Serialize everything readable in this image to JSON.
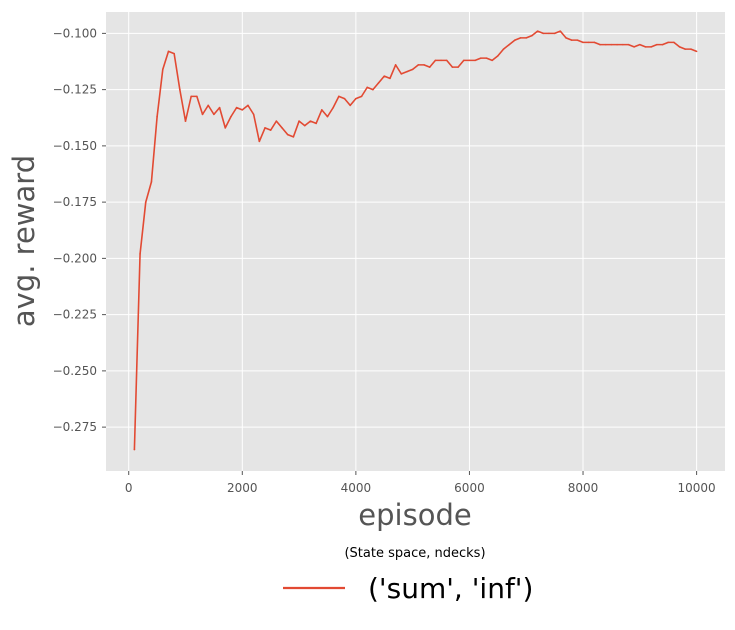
{
  "chart_data": {
    "type": "line",
    "xlabel": "episode",
    "ylabel": "avg. reward",
    "xlim": [
      -400,
      10500
    ],
    "ylim": [
      -0.2945,
      -0.0905
    ],
    "x_ticks": [
      {
        "value": 0,
        "label": "0"
      },
      {
        "value": 2000,
        "label": "2000"
      },
      {
        "value": 4000,
        "label": "4000"
      },
      {
        "value": 6000,
        "label": "6000"
      },
      {
        "value": 8000,
        "label": "8000"
      },
      {
        "value": 10000,
        "label": "10000"
      }
    ],
    "y_ticks": [
      {
        "value": -0.275,
        "label": "−0.275"
      },
      {
        "value": -0.25,
        "label": "−0.250"
      },
      {
        "value": -0.225,
        "label": "−0.225"
      },
      {
        "value": -0.2,
        "label": "−0.200"
      },
      {
        "value": -0.175,
        "label": "−0.175"
      },
      {
        "value": -0.15,
        "label": "−0.150"
      },
      {
        "value": -0.125,
        "label": "−0.125"
      },
      {
        "value": -0.1,
        "label": "−0.100"
      }
    ],
    "grid": true,
    "style": "ggplot",
    "legend": {
      "title": "(State space, ndecks)",
      "placement": "below the plot",
      "entries": [
        {
          "label": "('sum', 'inf')",
          "color": "#E24A33"
        }
      ]
    },
    "series": [
      {
        "name": "('sum', 'inf')",
        "color": "#E24A33",
        "x": [
          100,
          200,
          300,
          400,
          500,
          600,
          700,
          800,
          900,
          1000,
          1100,
          1200,
          1300,
          1400,
          1500,
          1600,
          1700,
          1800,
          1900,
          2000,
          2100,
          2200,
          2300,
          2400,
          2500,
          2600,
          2700,
          2800,
          2900,
          3000,
          3100,
          3200,
          3300,
          3400,
          3500,
          3600,
          3700,
          3800,
          3900,
          4000,
          4100,
          4200,
          4300,
          4400,
          4500,
          4600,
          4700,
          4800,
          4900,
          5000,
          5100,
          5200,
          5300,
          5400,
          5500,
          5600,
          5700,
          5800,
          5900,
          6000,
          6100,
          6200,
          6300,
          6400,
          6500,
          6600,
          6700,
          6800,
          6900,
          7000,
          7100,
          7200,
          7300,
          7400,
          7500,
          7600,
          7700,
          7800,
          7900,
          8000,
          8100,
          8200,
          8300,
          8400,
          8500,
          8600,
          8700,
          8800,
          8900,
          9000,
          9100,
          9200,
          9300,
          9400,
          9500,
          9600,
          9700,
          9800,
          9900,
          10000
        ],
        "y": [
          -0.285,
          -0.198,
          -0.175,
          -0.166,
          -0.137,
          -0.116,
          -0.108,
          -0.109,
          -0.125,
          -0.139,
          -0.128,
          -0.128,
          -0.136,
          -0.132,
          -0.136,
          -0.133,
          -0.142,
          -0.137,
          -0.133,
          -0.134,
          -0.132,
          -0.136,
          -0.148,
          -0.142,
          -0.143,
          -0.139,
          -0.142,
          -0.145,
          -0.146,
          -0.139,
          -0.141,
          -0.139,
          -0.14,
          -0.134,
          -0.137,
          -0.133,
          -0.128,
          -0.129,
          -0.132,
          -0.129,
          -0.128,
          -0.124,
          -0.125,
          -0.122,
          -0.119,
          -0.12,
          -0.114,
          -0.118,
          -0.117,
          -0.116,
          -0.114,
          -0.114,
          -0.115,
          -0.112,
          -0.112,
          -0.112,
          -0.115,
          -0.115,
          -0.112,
          -0.112,
          -0.112,
          -0.111,
          -0.111,
          -0.112,
          -0.11,
          -0.107,
          -0.105,
          -0.103,
          -0.102,
          -0.102,
          -0.101,
          -0.099,
          -0.1,
          -0.1,
          -0.1,
          -0.099,
          -0.102,
          -0.103,
          -0.103,
          -0.104,
          -0.104,
          -0.104,
          -0.105,
          -0.105,
          -0.105,
          -0.105,
          -0.105,
          -0.105,
          -0.106,
          -0.105,
          -0.106,
          -0.106,
          -0.105,
          -0.105,
          -0.104,
          -0.104,
          -0.106,
          -0.107,
          -0.107,
          -0.108
        ]
      }
    ]
  }
}
